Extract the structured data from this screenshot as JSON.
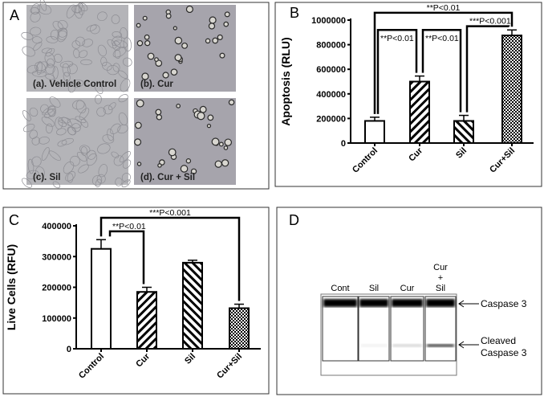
{
  "panel_a": {
    "label": "A",
    "images": [
      {
        "caption": "(a). Vehicle Control",
        "content": "confluent"
      },
      {
        "caption": "(b). Cur",
        "content": "rounded"
      },
      {
        "caption": "(c). Sil",
        "content": "confluent"
      },
      {
        "caption": "(d). Cur + Sil",
        "content": "rounded"
      }
    ]
  },
  "chart_data": [
    {
      "panel": "B",
      "type": "bar",
      "ylabel": "Apoptosis (RLU)",
      "categories": [
        "Control",
        "Cur",
        "Sil",
        "Cur+Sil"
      ],
      "values": [
        180000,
        500000,
        180000,
        875000
      ],
      "errors": [
        30000,
        45000,
        45000,
        45000
      ],
      "patterns": [
        "none",
        "diagonal",
        "diagonal-reverse",
        "checker"
      ],
      "ylim": [
        0,
        1000000
      ],
      "yticks": [
        "0",
        "200000",
        "400000",
        "600000",
        "800000",
        "1000000"
      ],
      "grid": false,
      "comparisons": [
        {
          "from": 0,
          "to": 3,
          "label": "**P<0.01",
          "level": 1060000
        },
        {
          "from": 0,
          "to": 1,
          "label": "**P<0.01",
          "level": 920000
        },
        {
          "from": 1,
          "to": 2,
          "label": "**P<0.01",
          "level": 920000
        },
        {
          "from": 2,
          "to": 3,
          "label": "***P<0.001",
          "level": 950000
        }
      ]
    },
    {
      "panel": "C",
      "type": "bar",
      "ylabel": "Live Cells (RFU)",
      "categories": [
        "Control",
        "Cur",
        "Sil",
        "Cur+Sil"
      ],
      "values": [
        325000,
        185000,
        280000,
        132000
      ],
      "errors": [
        30000,
        15000,
        8000,
        13000
      ],
      "patterns": [
        "none",
        "diagonal",
        "diagonal-reverse",
        "checker"
      ],
      "ylim": [
        0,
        400000
      ],
      "yticks": [
        "0",
        "100000",
        "200000",
        "300000",
        "400000"
      ],
      "grid": false,
      "comparisons": [
        {
          "from": 0,
          "to": 3,
          "label": "***P<0.001",
          "level": 426000
        },
        {
          "from": 0,
          "to": 1,
          "label": "**P<0.01",
          "level": 382000
        }
      ]
    }
  ],
  "panel_d": {
    "label": "D",
    "lanes": [
      "Cont",
      "Sil",
      "Cur",
      "Cur\n+\nSil"
    ],
    "lane_lines": [
      [
        "Cont"
      ],
      [
        "Sil"
      ],
      [
        "Cur"
      ],
      [
        "Cur",
        "+",
        "Sil"
      ]
    ],
    "bands": [
      {
        "label": "Caspase 3"
      },
      {
        "label_lines": [
          "Cleaved",
          "Caspase 3"
        ]
      }
    ],
    "cleaved_intensity": [
      0.0,
      0.05,
      0.15,
      0.7
    ]
  }
}
